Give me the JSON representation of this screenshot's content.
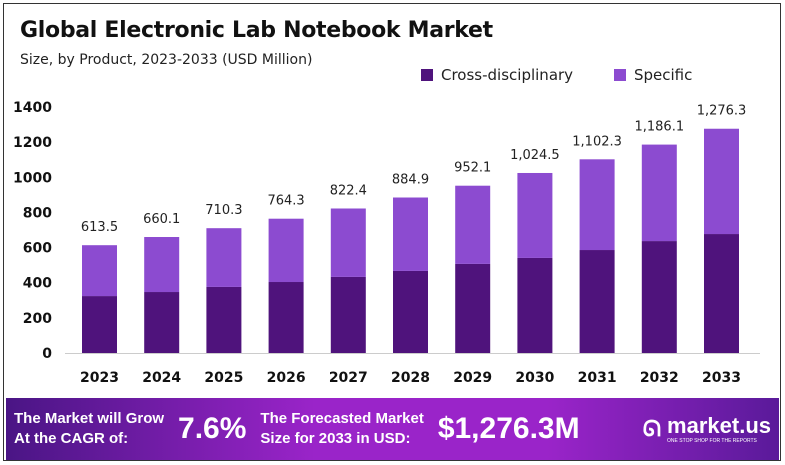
{
  "chart_data": {
    "type": "bar",
    "stacked": true,
    "title": "Global Electronic Lab Notebook Market",
    "subtitle": "Size, by Product, 2023-2033 (USD Million)",
    "categories": [
      "2023",
      "2024",
      "2025",
      "2026",
      "2027",
      "2028",
      "2029",
      "2030",
      "2031",
      "2032",
      "2033"
    ],
    "totals": [
      613.5,
      660.1,
      710.3,
      764.3,
      822.4,
      884.9,
      952.1,
      1024.5,
      1102.3,
      1186.1,
      1276.3
    ],
    "total_labels": [
      "613.5",
      "660.1",
      "710.3",
      "764.3",
      "822.4",
      "884.9",
      "952.1",
      "1,024.5",
      "1,102.3",
      "1,186.1",
      "1,276.3"
    ],
    "series": [
      {
        "name": "Cross-disciplinary",
        "color": "#4f137c",
        "values": [
          324,
          347,
          376,
          404,
          433,
          467,
          507,
          541,
          586,
          637,
          677
        ]
      },
      {
        "name": "Specific",
        "color": "#8c4bd0",
        "values": [
          289.5,
          313.1,
          334.3,
          360.3,
          389.4,
          417.9,
          445.1,
          483.5,
          516.3,
          549.1,
          599.3
        ]
      }
    ],
    "ylim": [
      0,
      1400
    ],
    "yticks": [
      "0",
      "200",
      "400",
      "600",
      "800",
      "1000",
      "1200",
      "1400"
    ],
    "legend_position": "top-right",
    "grid": false
  },
  "banner": {
    "cagr_text_1": "The Market will Grow",
    "cagr_text_2": "At the CAGR of:",
    "cagr_value": "7.6%",
    "forecast_text_1": "The Forecasted Market",
    "forecast_text_2": "Size for 2033 in USD:",
    "forecast_value": "$1,276.3M",
    "logo_name": "market.us",
    "logo_tagline": "ONE STOP SHOP FOR THE REPORTS"
  }
}
